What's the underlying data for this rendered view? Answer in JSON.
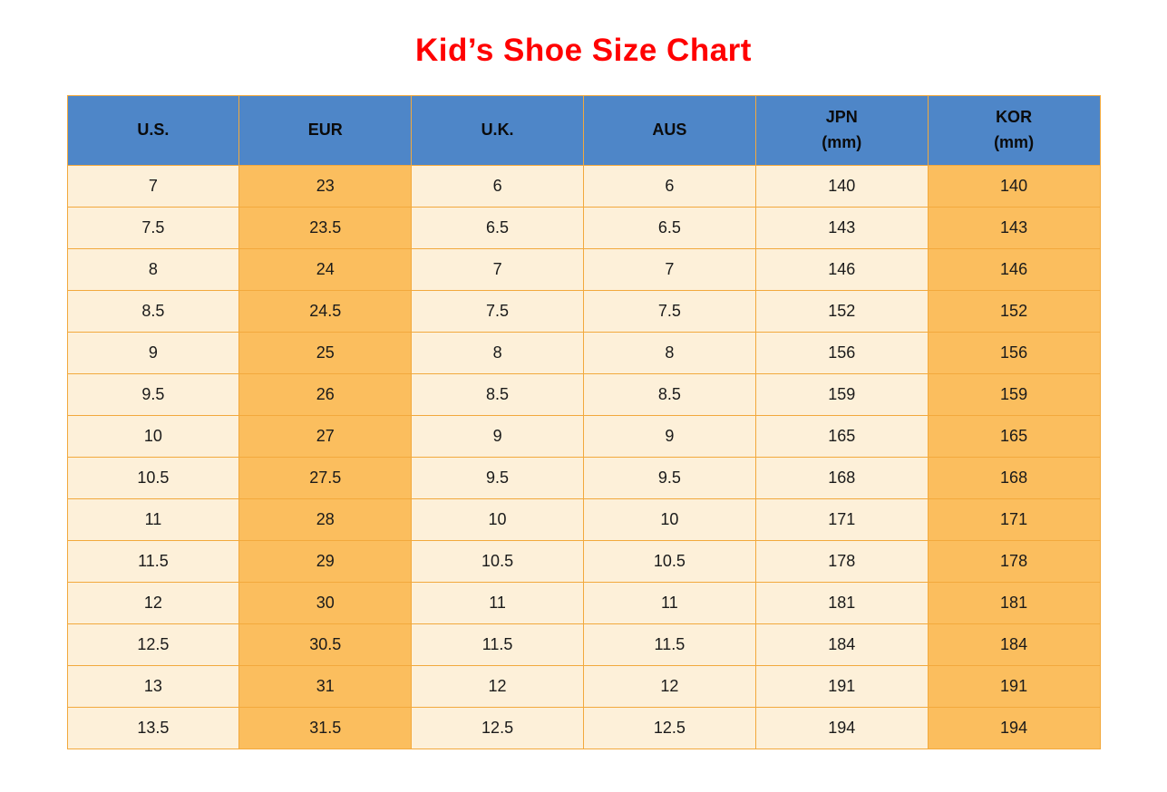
{
  "page": {
    "title": "Kid’s Shoe Size Chart"
  },
  "colors": {
    "title": "#ff0000",
    "header_bg": "#4e86c8",
    "header_text": "#0b0b0b",
    "cell_light": "#fdf0d9",
    "cell_orange": "#fbbe5e",
    "border": "#f2a93d",
    "cell_text": "#1a1a1a"
  },
  "chart_data": {
    "type": "table",
    "title": "Kid’s Shoe Size Chart",
    "columns": [
      "U.S.",
      "EUR",
      "U.K.",
      "AUS",
      "JPN\n(mm)",
      "KOR\n(mm)"
    ],
    "orange_columns": [
      1,
      5
    ],
    "rows": [
      [
        "7",
        "23",
        "6",
        "6",
        "140",
        "140"
      ],
      [
        "7.5",
        "23.5",
        "6.5",
        "6.5",
        "143",
        "143"
      ],
      [
        "8",
        "24",
        "7",
        "7",
        "146",
        "146"
      ],
      [
        "8.5",
        "24.5",
        "7.5",
        "7.5",
        "152",
        "152"
      ],
      [
        "9",
        "25",
        "8",
        "8",
        "156",
        "156"
      ],
      [
        "9.5",
        "26",
        "8.5",
        "8.5",
        "159",
        "159"
      ],
      [
        "10",
        "27",
        "9",
        "9",
        "165",
        "165"
      ],
      [
        "10.5",
        "27.5",
        "9.5",
        "9.5",
        "168",
        "168"
      ],
      [
        "11",
        "28",
        "10",
        "10",
        "171",
        "171"
      ],
      [
        "11.5",
        "29",
        "10.5",
        "10.5",
        "178",
        "178"
      ],
      [
        "12",
        "30",
        "11",
        "11",
        "181",
        "181"
      ],
      [
        "12.5",
        "30.5",
        "11.5",
        "11.5",
        "184",
        "184"
      ],
      [
        "13",
        "31",
        "12",
        "12",
        "191",
        "191"
      ],
      [
        "13.5",
        "31.5",
        "12.5",
        "12.5",
        "194",
        "194"
      ]
    ]
  }
}
